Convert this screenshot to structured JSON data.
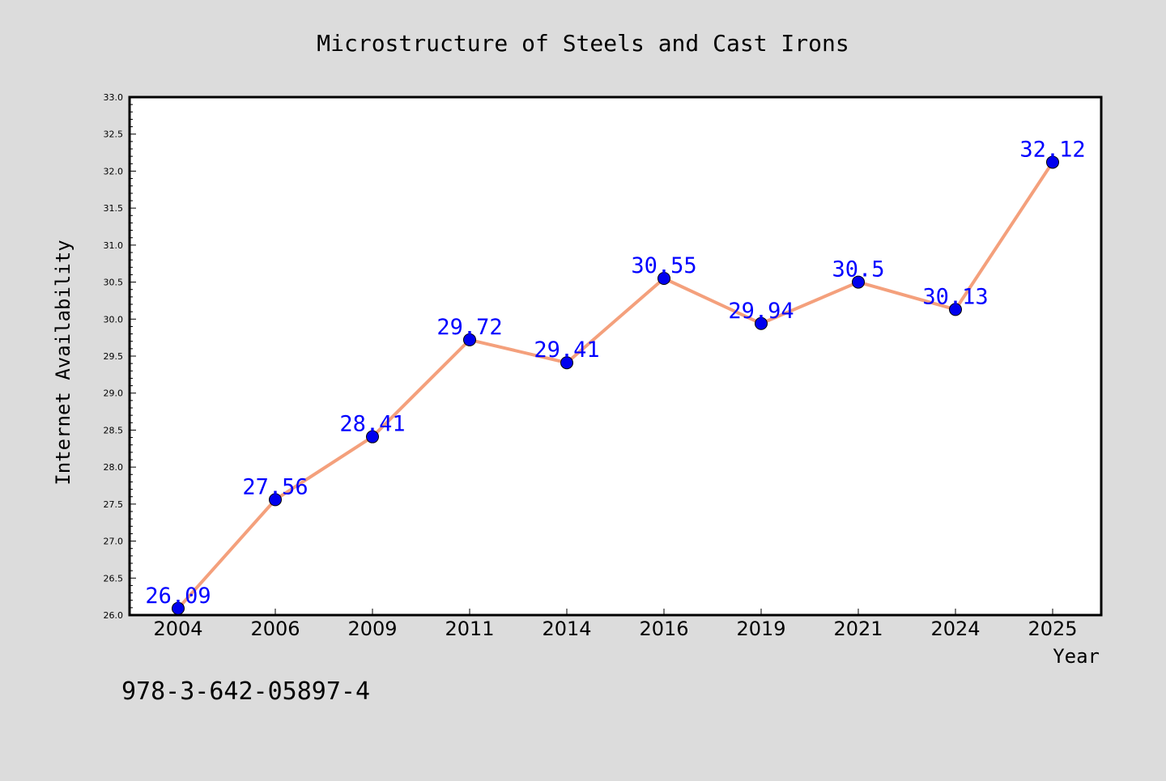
{
  "chart_data": {
    "type": "line",
    "title": "Microstructure of Steels and Cast Irons",
    "xlabel": "Year",
    "ylabel": "Internet Availability",
    "categories": [
      "2004",
      "2006",
      "2009",
      "2011",
      "2014",
      "2016",
      "2019",
      "2021",
      "2024",
      "2025"
    ],
    "series": [
      {
        "values": [
          26.09,
          27.56,
          28.41,
          29.72,
          29.41,
          30.55,
          29.94,
          30.5,
          30.13,
          32.12
        ],
        "labels": [
          "26.09",
          "27.56",
          "28.41",
          "29.72",
          "29.41",
          "30.55",
          "29.94",
          "30.5",
          "30.13",
          "32.12"
        ]
      }
    ],
    "ylim": [
      26.0,
      33.0
    ],
    "yticks": [
      "26.0",
      "26.5",
      "27.0",
      "27.5",
      "28.0",
      "28.5",
      "29.0",
      "29.5",
      "30.0",
      "30.5",
      "31.0",
      "31.5",
      "32.0",
      "32.5",
      "33.0"
    ],
    "grid": false,
    "legend": "none",
    "colors": {
      "line": "#f4a07c",
      "marker": "#0000ee",
      "data_label": "#0000ff",
      "background": "#dcdcdc",
      "plot_area": "#ffffff"
    }
  },
  "annotation": {
    "isbn": "978-3-642-05897-4"
  }
}
